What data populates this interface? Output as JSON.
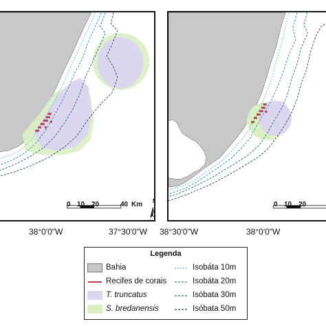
{
  "colors": {
    "land": "#c8c8c8",
    "reef": "#b8424a",
    "t_truncatus": "#dcd6ef",
    "s_bredanensis": "#dcefc4",
    "isobath_10m": "#59b7d9",
    "isobath_20m": "#2d86b8",
    "isobath_30m": "#1d5f93",
    "isobath_50m": "#1a3f6b"
  },
  "left_map": {
    "scale_labels": [
      "0",
      "10",
      "20",
      "40",
      "Km"
    ],
    "north_label": "N"
  },
  "right_map": {
    "scale_labels": [
      "0",
      "10",
      "20"
    ]
  },
  "coordinates": {
    "left_1": "38°0'0\"W",
    "left_2": "37°30'0\"W",
    "mid": "38°30'0\"W",
    "right_1": "38°0'0\"W"
  },
  "legend": {
    "title": "Legenda",
    "items": [
      {
        "label": "Bahia",
        "icon": "land-swatch"
      },
      {
        "label": "Recifes de corais",
        "icon": "reef-line"
      },
      {
        "label": "T. truncatus",
        "icon": "t-truncatus-swatch"
      },
      {
        "label": "S. bredanensis",
        "icon": "s-bredanensis-swatch"
      },
      {
        "label": "Isobáta 10m",
        "icon": "isobath-10m-line"
      },
      {
        "label": "Isobáta 20m",
        "icon": "isobath-20m-line"
      },
      {
        "label": "Isóbata 30m",
        "icon": "isobath-30m-line"
      },
      {
        "label": "Isóbata 50m",
        "icon": "isobath-50m-line"
      }
    ]
  }
}
